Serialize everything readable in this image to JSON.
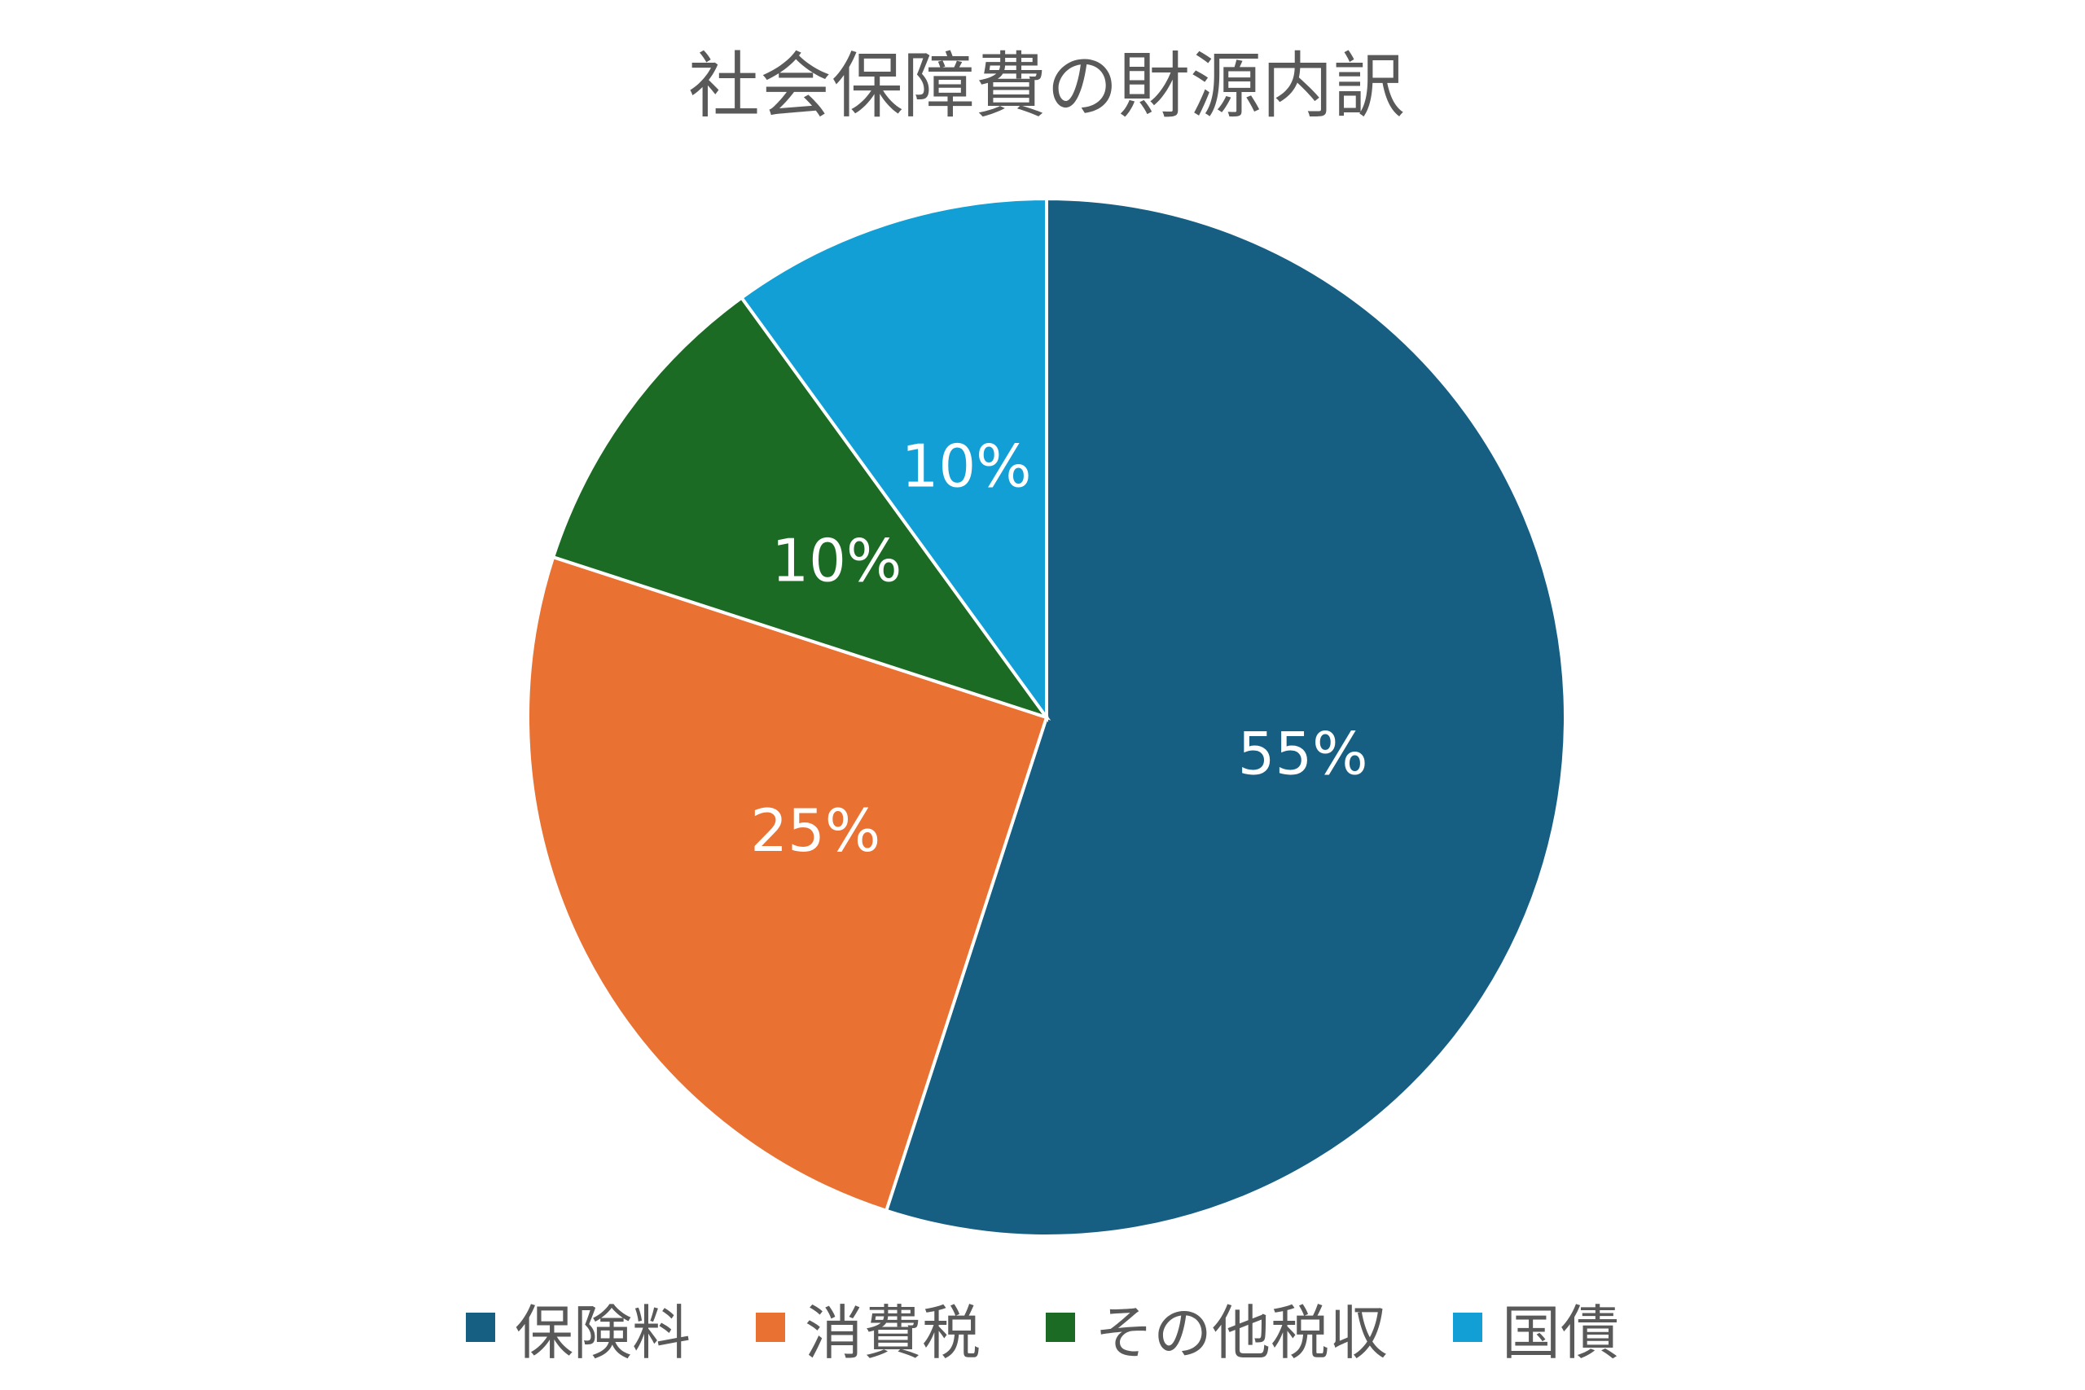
{
  "chart_data": {
    "type": "pie",
    "title": "社会保障費の財源内訳",
    "categories": [
      "保険料",
      "消費税",
      "その他税収",
      "国債"
    ],
    "values": [
      55,
      25,
      10,
      10
    ],
    "value_labels": [
      "55%",
      "25%",
      "10%",
      "10%"
    ],
    "colors": [
      "#175f82",
      "#e97132",
      "#1b6b24",
      "#129fd6"
    ],
    "legend": "bottom"
  }
}
